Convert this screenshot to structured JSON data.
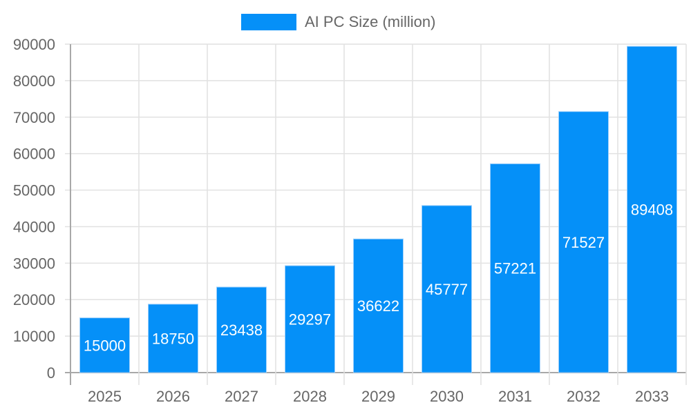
{
  "chart_data": {
    "type": "bar",
    "title": "",
    "xlabel": "",
    "ylabel": "",
    "legend": [
      "AI PC Size (million)"
    ],
    "legend_position": "top",
    "categories": [
      "2025",
      "2026",
      "2027",
      "2028",
      "2029",
      "2030",
      "2031",
      "2032",
      "2033"
    ],
    "series": [
      {
        "name": "AI PC Size (million)",
        "color": "#0590f8",
        "values": [
          15000,
          18750,
          23438,
          29297,
          36622,
          45777,
          57221,
          71527,
          89408
        ]
      }
    ],
    "ylim": [
      0,
      90000
    ],
    "yticks": [
      0,
      10000,
      20000,
      30000,
      40000,
      50000,
      60000,
      70000,
      80000,
      90000
    ],
    "grid": true,
    "data_labels": true
  },
  "legend": {
    "label": "AI PC Size (million)",
    "color": "#0590f8"
  }
}
